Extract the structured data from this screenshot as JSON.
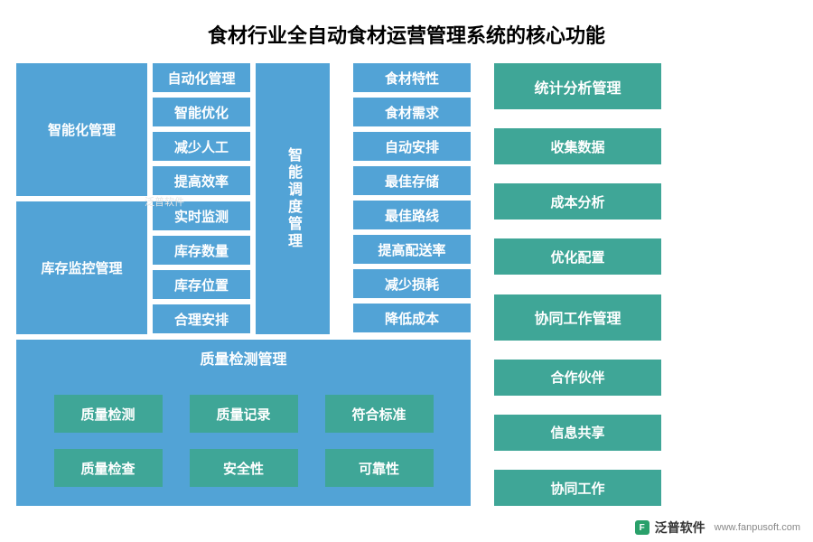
{
  "title": "食材行业全自动食材运营管理系统的核心功能",
  "colors": {
    "blue": "#52a3d6",
    "teal": "#3fa697",
    "white": "#ffffff",
    "text": "#000000"
  },
  "layout": {
    "gap": 6,
    "col1_w": 145,
    "col2_w": 108,
    "col3_w": 82,
    "col4_w": 130,
    "col5_w": 185,
    "small_h": 32,
    "group_h": 147,
    "col5_big_h": 51,
    "col5_small_h": 40,
    "bottom_header_h": 40,
    "bottom_btn_h": 42,
    "bottom_btn_w": 120,
    "font_main": 15,
    "font_small": 15
  },
  "left_groups": [
    {
      "title": "智能化管理",
      "items": [
        "自动化管理",
        "智能优化",
        "减少人工",
        "提高效率"
      ]
    },
    {
      "title": "库存监控管理",
      "items": [
        "实时监测",
        "库存数量",
        "库存位置",
        "合理安排"
      ]
    }
  ],
  "center_vertical": {
    "title": "智能调度管理"
  },
  "center_items": [
    "食材特性",
    "食材需求",
    "自动安排",
    "最佳存储",
    "最佳路线",
    "提高配送率",
    "减少损耗",
    "降低成本"
  ],
  "right_column": [
    {
      "label": "统计分析管理",
      "big": true
    },
    {
      "label": "收集数据",
      "big": false
    },
    {
      "label": "成本分析",
      "big": false
    },
    {
      "label": "优化配置",
      "big": false
    },
    {
      "label": "协同工作管理",
      "big": true
    },
    {
      "label": "合作伙伴",
      "big": false
    },
    {
      "label": "信息共享",
      "big": false
    },
    {
      "label": "协同工作",
      "big": false
    }
  ],
  "bottom_section": {
    "header": "质量检测管理",
    "rows": [
      [
        "质量检测",
        "质量记录",
        "符合标准"
      ],
      [
        "质量检查",
        "安全性",
        "可靠性"
      ]
    ]
  },
  "footer": {
    "brand": "泛普软件",
    "url": "www.fanpusoft.com"
  }
}
